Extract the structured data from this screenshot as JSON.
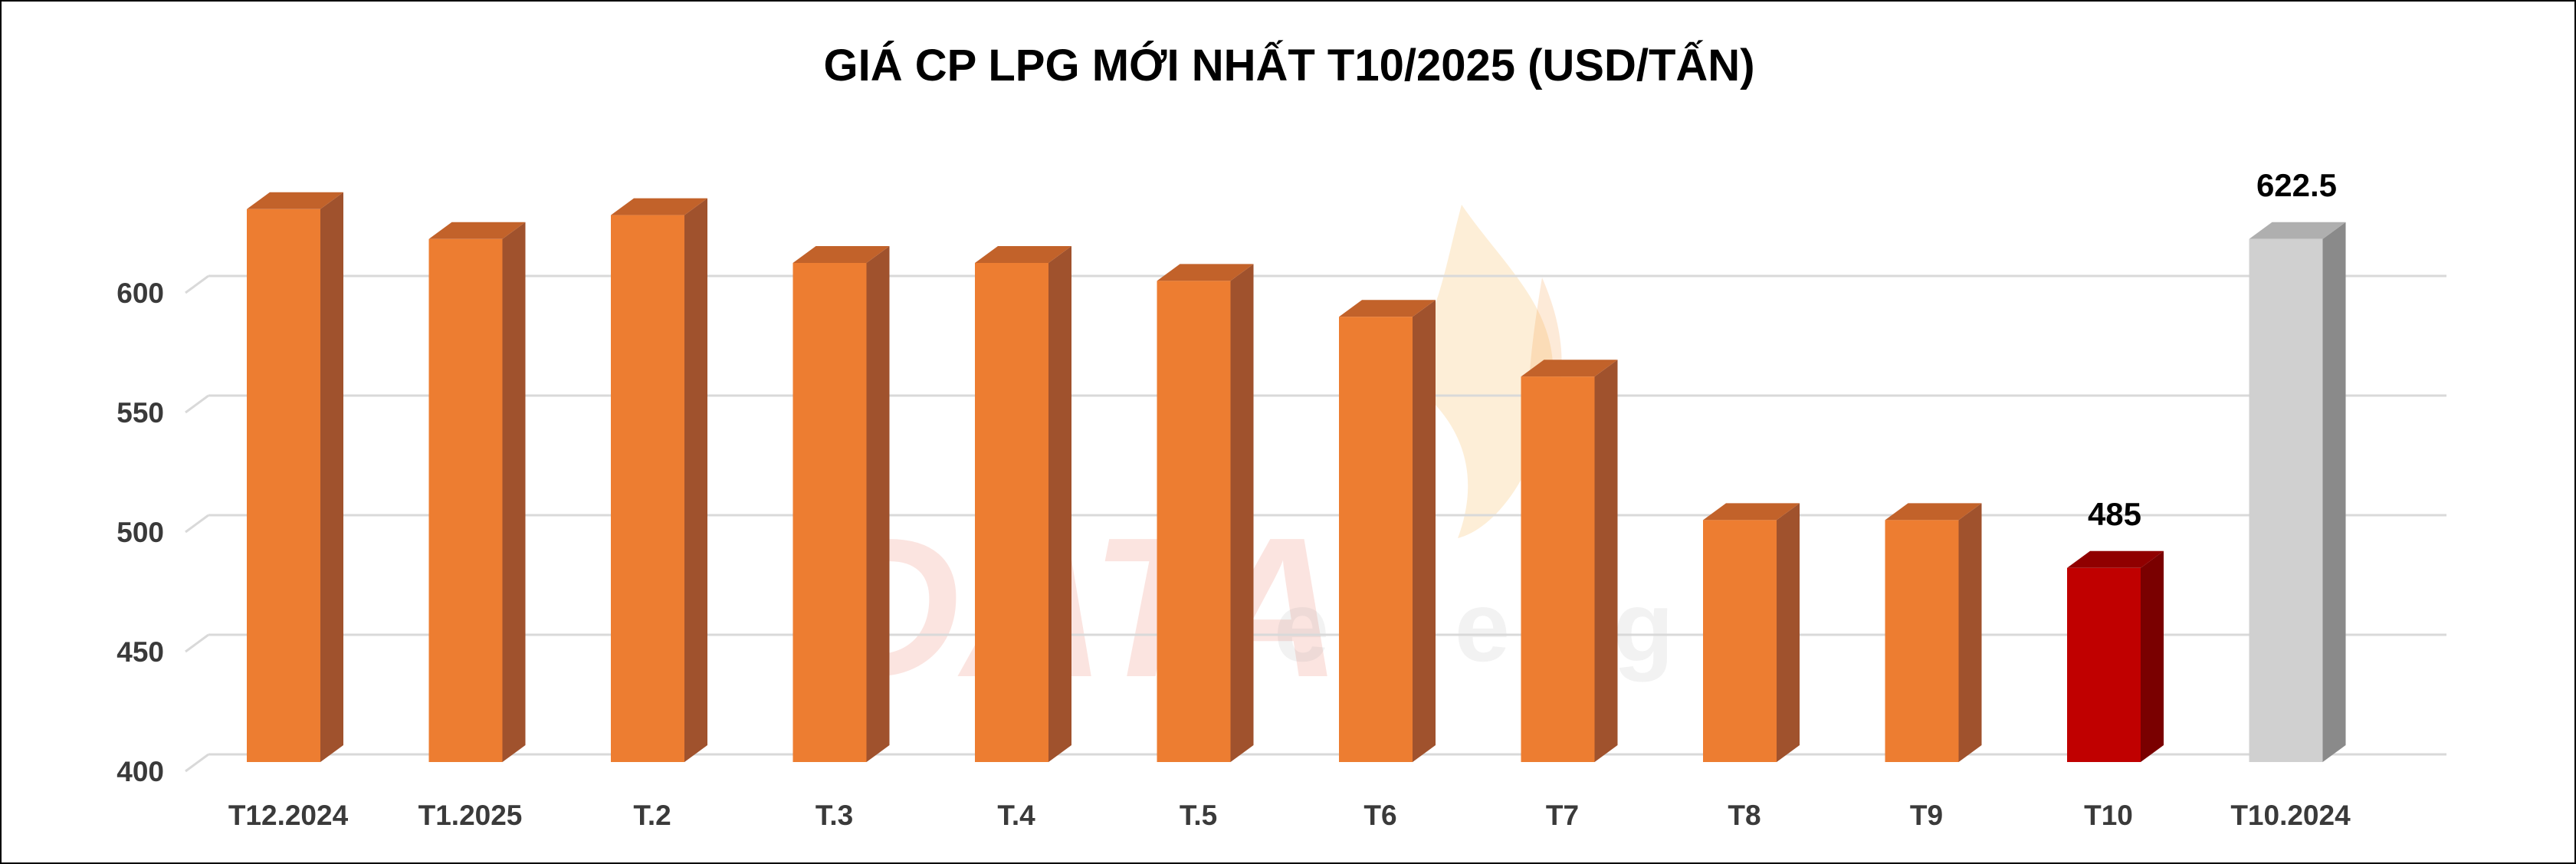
{
  "chart_data": {
    "type": "bar",
    "title": "GIÁ CP LPG MỚI NHẤT T10/2025 (USD/TẤN)",
    "categories": [
      "T12.2024",
      "T1.2025",
      "T.2",
      "T.3",
      "T.4",
      "T.5",
      "T6",
      "T7",
      "T8",
      "T9",
      "T10",
      "T10.2024"
    ],
    "values": [
      635,
      622.5,
      632.5,
      612.5,
      612.5,
      605,
      590,
      565,
      505,
      505,
      485,
      622.5
    ],
    "data_labels": [
      {
        "category_index": 10,
        "text": "485"
      },
      {
        "category_index": 11,
        "text": "622.5"
      }
    ],
    "yticks": [
      400,
      450,
      500,
      550,
      600
    ],
    "ylim": [
      400,
      650
    ],
    "grid": true,
    "legend": "none",
    "style": "3d-column",
    "colors": {
      "default_front": "#ED7D31",
      "default_side": "#A0522D",
      "default_top": "#C2622A",
      "highlight_front": "#C00000",
      "highlight_side": "#7A0000",
      "highlight_top": "#900000",
      "compare_front": "#D0D0D0",
      "compare_side": "#8A8A8A",
      "compare_top": "#AFAFAF",
      "gridline": "#D9D9D9"
    },
    "bar_color_roles": [
      "default",
      "default",
      "default",
      "default",
      "default",
      "default",
      "default",
      "default",
      "default",
      "default",
      "highlight",
      "compare"
    ]
  },
  "watermark": {
    "logo_text": "DATA",
    "logo_subtext": "energy"
  }
}
